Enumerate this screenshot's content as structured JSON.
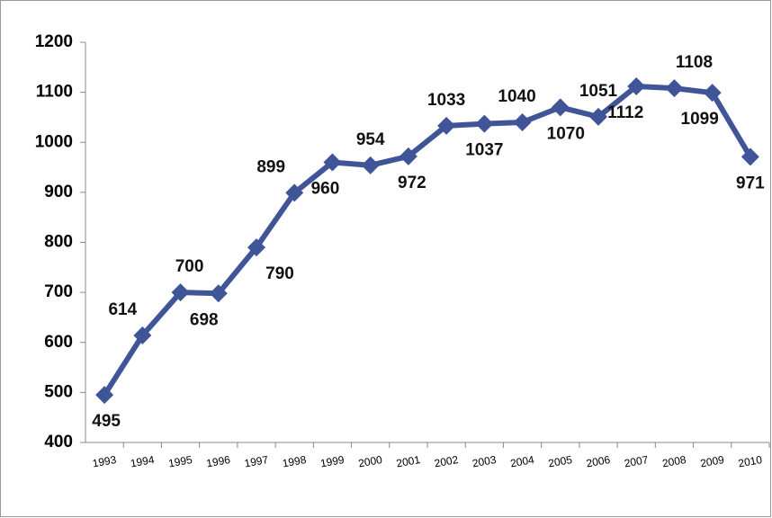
{
  "chart_data": {
    "type": "line",
    "categories": [
      "1993",
      "1994",
      "1995",
      "1996",
      "1997",
      "1998",
      "1999",
      "2000",
      "2001",
      "2002",
      "2003",
      "2004",
      "2005",
      "2006",
      "2007",
      "2008",
      "2009",
      "2010"
    ],
    "series": [
      {
        "color": "#3f5597",
        "values": [
          495,
          614,
          700,
          698,
          790,
          899,
          960,
          954,
          972,
          1033,
          1037,
          1040,
          1070,
          1051,
          1112,
          1108,
          1099,
          971
        ]
      }
    ],
    "ylim": [
      400,
      1200
    ],
    "yticks": [
      400,
      500,
      600,
      700,
      800,
      900,
      1000,
      1100,
      1200
    ]
  }
}
